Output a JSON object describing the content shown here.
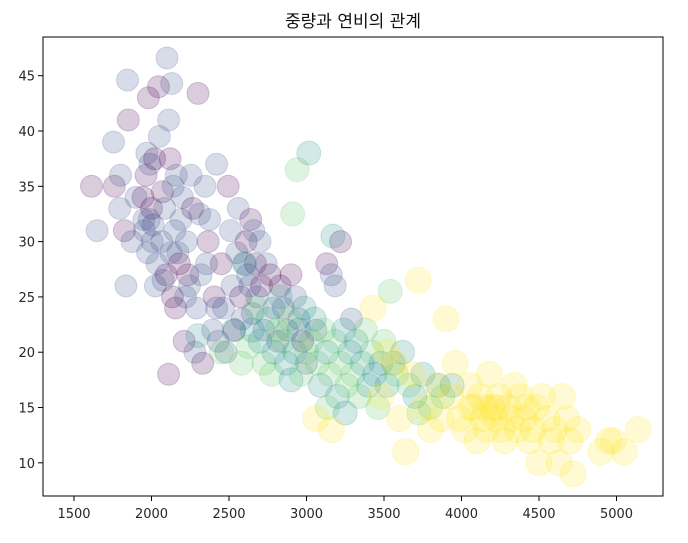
{
  "chart_data": {
    "type": "scatter",
    "title": "중량과 연비의 관계",
    "xlabel": "",
    "ylabel": "",
    "xlim": [
      1300,
      5300
    ],
    "ylim": [
      7,
      48.5
    ],
    "xticks": [
      1500,
      2000,
      2500,
      3000,
      3500,
      4000,
      4500,
      5000
    ],
    "yticks": [
      10,
      15,
      20,
      25,
      30,
      35,
      40,
      45
    ],
    "grid": false,
    "legend": "none",
    "marker_opacity": 0.2,
    "color_scale": [
      "#440154",
      "#3b528b",
      "#21918c",
      "#5ec962",
      "#fde725"
    ],
    "points": [
      [
        1613,
        35,
        0
      ],
      [
        1649,
        31,
        0
      ],
      [
        1755,
        39,
        0
      ],
      [
        1760,
        35,
        0
      ],
      [
        1795,
        33,
        0
      ],
      [
        1800,
        36,
        0
      ],
      [
        1825,
        31,
        0
      ],
      [
        1835,
        26,
        0
      ],
      [
        1845,
        44.6,
        0
      ],
      [
        1850,
        41,
        0
      ],
      [
        1875,
        30,
        0
      ],
      [
        1900,
        34,
        0
      ],
      [
        1945,
        34,
        0
      ],
      [
        1950,
        32,
        0
      ],
      [
        1955,
        31,
        0
      ],
      [
        1965,
        36,
        0
      ],
      [
        1970,
        38,
        0
      ],
      [
        1975,
        29,
        0
      ],
      [
        1980,
        43,
        0
      ],
      [
        1985,
        32,
        0
      ],
      [
        1990,
        37,
        0
      ],
      [
        2000,
        33,
        0
      ],
      [
        2005,
        30,
        0
      ],
      [
        2010,
        31.5,
        0
      ],
      [
        2020,
        37.5,
        0
      ],
      [
        2025,
        26,
        0
      ],
      [
        2035,
        28,
        0
      ],
      [
        2045,
        44,
        0
      ],
      [
        2050,
        39.5,
        0
      ],
      [
        2065,
        30,
        0
      ],
      [
        2070,
        34.5,
        0
      ],
      [
        2075,
        26.5,
        0
      ],
      [
        2085,
        33,
        0
      ],
      [
        2095,
        27,
        0
      ],
      [
        2100,
        46.6,
        0
      ],
      [
        2110,
        41,
        0
      ],
      [
        2120,
        37.5,
        0
      ],
      [
        2125,
        29,
        0
      ],
      [
        2130,
        44.3,
        0
      ],
      [
        2135,
        25,
        0
      ],
      [
        2140,
        35,
        0
      ],
      [
        2150,
        31,
        0
      ],
      [
        2155,
        24,
        0
      ],
      [
        2160,
        36,
        0
      ],
      [
        2170,
        29,
        0
      ],
      [
        2180,
        28,
        0
      ],
      [
        2190,
        32,
        0
      ],
      [
        2200,
        34,
        0
      ],
      [
        2210,
        21,
        0
      ],
      [
        2220,
        25,
        0
      ],
      [
        2225,
        30,
        0
      ],
      [
        2234,
        27,
        0
      ],
      [
        2245,
        26,
        0
      ],
      [
        2255,
        36,
        0
      ],
      [
        2265,
        33,
        0
      ],
      [
        2280,
        20,
        0
      ],
      [
        2290,
        24,
        0
      ],
      [
        2300,
        43.4,
        0
      ],
      [
        2310,
        32.5,
        0
      ],
      [
        2320,
        27,
        0
      ],
      [
        2330,
        19,
        0
      ],
      [
        2345,
        35,
        0
      ],
      [
        2355,
        28,
        0
      ],
      [
        2365,
        30,
        0
      ],
      [
        2375,
        32,
        0
      ],
      [
        2395,
        22,
        0
      ],
      [
        2405,
        25,
        0
      ],
      [
        2420,
        37,
        0
      ],
      [
        2430,
        21,
        0
      ],
      [
        2450,
        28,
        0
      ],
      [
        2465,
        24,
        0
      ],
      [
        2480,
        20,
        0
      ],
      [
        2495,
        35,
        0
      ],
      [
        2510,
        31,
        0
      ],
      [
        2520,
        26,
        0
      ],
      [
        2535,
        22,
        0
      ],
      [
        2550,
        29,
        0
      ],
      [
        2560,
        33,
        0
      ],
      [
        2575,
        25,
        0
      ],
      [
        2585,
        23,
        0
      ],
      [
        2600,
        28,
        0
      ],
      [
        2610,
        30,
        0
      ],
      [
        2620,
        27,
        0
      ],
      [
        2635,
        26,
        0
      ],
      [
        2640,
        32,
        0
      ],
      [
        2650,
        23.5,
        0
      ],
      [
        2660,
        31,
        0
      ],
      [
        2670,
        28,
        0
      ],
      [
        2680,
        25,
        0
      ],
      [
        2700,
        30,
        0
      ],
      [
        2710,
        26,
        0
      ],
      [
        2725,
        22,
        0
      ],
      [
        2740,
        28,
        0
      ],
      [
        2765,
        27,
        0
      ],
      [
        2790,
        24,
        0
      ],
      [
        2815,
        21,
        0
      ],
      [
        2830,
        26,
        0
      ],
      [
        2850,
        24,
        0
      ],
      [
        2875,
        22,
        0
      ],
      [
        2900,
        27,
        0
      ],
      [
        2930,
        25,
        0
      ],
      [
        2950,
        23,
        0
      ],
      [
        2975,
        21,
        0
      ],
      [
        3000,
        19,
        0
      ],
      [
        3060,
        22,
        0
      ],
      [
        3130,
        28,
        0
      ],
      [
        3160,
        27,
        0
      ],
      [
        3185,
        26,
        0
      ],
      [
        3220,
        30,
        0
      ],
      [
        3290,
        23,
        0
      ],
      [
        2420,
        24,
        0
      ],
      [
        2110,
        18,
        0
      ],
      [
        2300,
        21.5,
        1
      ],
      [
        2450,
        20,
        1
      ],
      [
        2530,
        22,
        1
      ],
      [
        2580,
        19,
        1
      ],
      [
        2600,
        28,
        1
      ],
      [
        2625,
        20.5,
        1
      ],
      [
        2650,
        22,
        1
      ],
      [
        2675,
        24,
        1
      ],
      [
        2700,
        21,
        1
      ],
      [
        2725,
        19,
        1
      ],
      [
        2750,
        23,
        1
      ],
      [
        2775,
        18,
        1
      ],
      [
        2790,
        20,
        1
      ],
      [
        2810,
        22,
        1
      ],
      [
        2830,
        25,
        1
      ],
      [
        2850,
        21,
        1
      ],
      [
        2870,
        19,
        1
      ],
      [
        2890,
        23,
        1
      ],
      [
        2900,
        17.5,
        1
      ],
      [
        2910,
        32.5,
        1
      ],
      [
        2925,
        20,
        1
      ],
      [
        2940,
        36.5,
        1
      ],
      [
        2950,
        22,
        1
      ],
      [
        2965,
        18,
        1
      ],
      [
        2985,
        24,
        1
      ],
      [
        3000,
        20,
        1
      ],
      [
        3015,
        38,
        1
      ],
      [
        3030,
        21,
        1
      ],
      [
        3050,
        23,
        1
      ],
      [
        3070,
        19,
        1
      ],
      [
        3090,
        17,
        1
      ],
      [
        3110,
        22,
        1
      ],
      [
        3130,
        20,
        1
      ],
      [
        3150,
        18,
        1
      ],
      [
        3170,
        30.5,
        1
      ],
      [
        3185,
        21,
        1
      ],
      [
        3200,
        16,
        1
      ],
      [
        3220,
        19,
        1
      ],
      [
        3240,
        22,
        1
      ],
      [
        3260,
        17,
        1
      ],
      [
        3280,
        20,
        1
      ],
      [
        3300,
        18,
        1
      ],
      [
        3320,
        21,
        1
      ],
      [
        3340,
        16,
        1
      ],
      [
        3360,
        19,
        1
      ],
      [
        3380,
        22,
        1
      ],
      [
        3400,
        17,
        1
      ],
      [
        3420,
        20,
        1
      ],
      [
        3440,
        18,
        1
      ],
      [
        3460,
        15,
        1
      ],
      [
        3480,
        19,
        1
      ],
      [
        3500,
        21,
        1
      ],
      [
        3520,
        17,
        1
      ],
      [
        3540,
        25.5,
        1
      ],
      [
        3560,
        19,
        1
      ],
      [
        3580,
        18,
        1
      ],
      [
        3620,
        20,
        1
      ],
      [
        3660,
        17,
        1
      ],
      [
        3700,
        16,
        1
      ],
      [
        3725,
        14.5,
        1
      ],
      [
        3750,
        18,
        1
      ],
      [
        3800,
        15,
        1
      ],
      [
        3850,
        17,
        1
      ],
      [
        3880,
        16,
        1
      ],
      [
        3940,
        17,
        1
      ],
      [
        3135,
        15,
        1
      ],
      [
        3250,
        14.5,
        1
      ],
      [
        3060,
        14,
        2
      ],
      [
        3160,
        13,
        2
      ],
      [
        3430,
        24,
        2
      ],
      [
        3480,
        16,
        2
      ],
      [
        3520,
        20,
        2
      ],
      [
        3570,
        19,
        2
      ],
      [
        3600,
        14,
        2
      ],
      [
        3640,
        11,
        2
      ],
      [
        3680,
        18,
        2
      ],
      [
        3720,
        26.5,
        2
      ],
      [
        3760,
        15,
        2
      ],
      [
        3800,
        13,
        2
      ],
      [
        3840,
        17,
        2
      ],
      [
        3870,
        14,
        2
      ],
      [
        3900,
        23,
        2
      ],
      [
        3930,
        16,
        2
      ],
      [
        3960,
        19,
        2
      ],
      [
        3990,
        14,
        2
      ],
      [
        4020,
        13,
        2
      ],
      [
        4050,
        17,
        2
      ],
      [
        4080,
        15,
        2
      ],
      [
        4100,
        12,
        2
      ],
      [
        4120,
        16,
        2
      ],
      [
        4140,
        14,
        2
      ],
      [
        4160,
        13,
        2
      ],
      [
        4180,
        18,
        2
      ],
      [
        4200,
        15,
        2
      ],
      [
        4220,
        14,
        2
      ],
      [
        4240,
        16,
        2
      ],
      [
        4260,
        13,
        2
      ],
      [
        4280,
        12,
        2
      ],
      [
        4300,
        15,
        2
      ],
      [
        4320,
        14,
        2
      ],
      [
        4340,
        17,
        2
      ],
      [
        4360,
        13,
        2
      ],
      [
        4380,
        16,
        2
      ],
      [
        4400,
        14,
        2
      ],
      [
        4420,
        15,
        2
      ],
      [
        4440,
        12,
        2
      ],
      [
        4460,
        13,
        2
      ],
      [
        4480,
        15,
        2
      ],
      [
        4500,
        10,
        2
      ],
      [
        4520,
        16,
        2
      ],
      [
        4550,
        14,
        2
      ],
      [
        4580,
        12,
        2
      ],
      [
        4600,
        13,
        2
      ],
      [
        4630,
        10,
        2
      ],
      [
        4650,
        16,
        2
      ],
      [
        4680,
        14,
        2
      ],
      [
        4700,
        12,
        2
      ],
      [
        4720,
        9,
        2
      ],
      [
        4750,
        13,
        2
      ],
      [
        4900,
        11,
        2
      ],
      [
        4950,
        12,
        2
      ],
      [
        4980,
        12,
        2
      ],
      [
        5050,
        11,
        2
      ],
      [
        5140,
        13,
        2
      ],
      [
        4060,
        15,
        2
      ],
      [
        4150,
        15,
        2
      ],
      [
        4230,
        15,
        2
      ]
    ]
  }
}
